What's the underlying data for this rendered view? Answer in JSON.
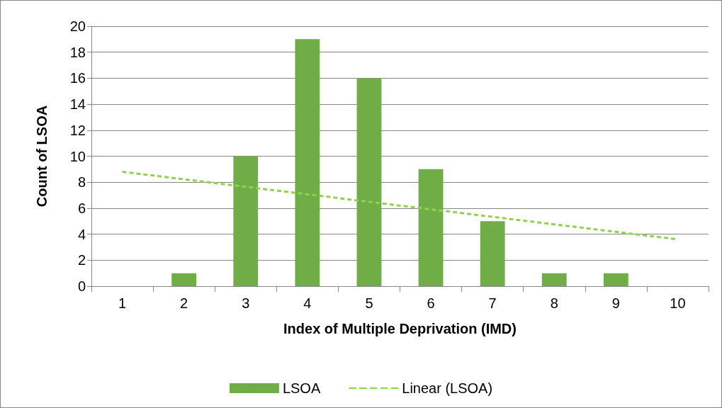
{
  "chart_data": {
    "type": "bar",
    "xlabel": "Index of Multiple Deprivation (IMD)",
    "ylabel": "Count of LSOA",
    "categories": [
      "1",
      "2",
      "3",
      "4",
      "5",
      "6",
      "7",
      "8",
      "9",
      "10"
    ],
    "series": [
      {
        "name": "LSOA",
        "color": "#70ad47",
        "values": [
          0,
          1,
          10,
          19,
          16,
          9,
          5,
          1,
          1,
          0
        ]
      },
      {
        "name": "Linear (LSOA)",
        "type": "line",
        "color": "#92d050",
        "x": [
          "1",
          "10"
        ],
        "values": [
          8.8,
          3.6
        ],
        "line_style": "dashed",
        "marker": "none"
      }
    ],
    "ylim": [
      0,
      20
    ],
    "yticks": [
      0,
      2,
      4,
      6,
      8,
      10,
      12,
      14,
      16,
      18,
      20
    ],
    "grid": "y",
    "legend": "bottom"
  }
}
